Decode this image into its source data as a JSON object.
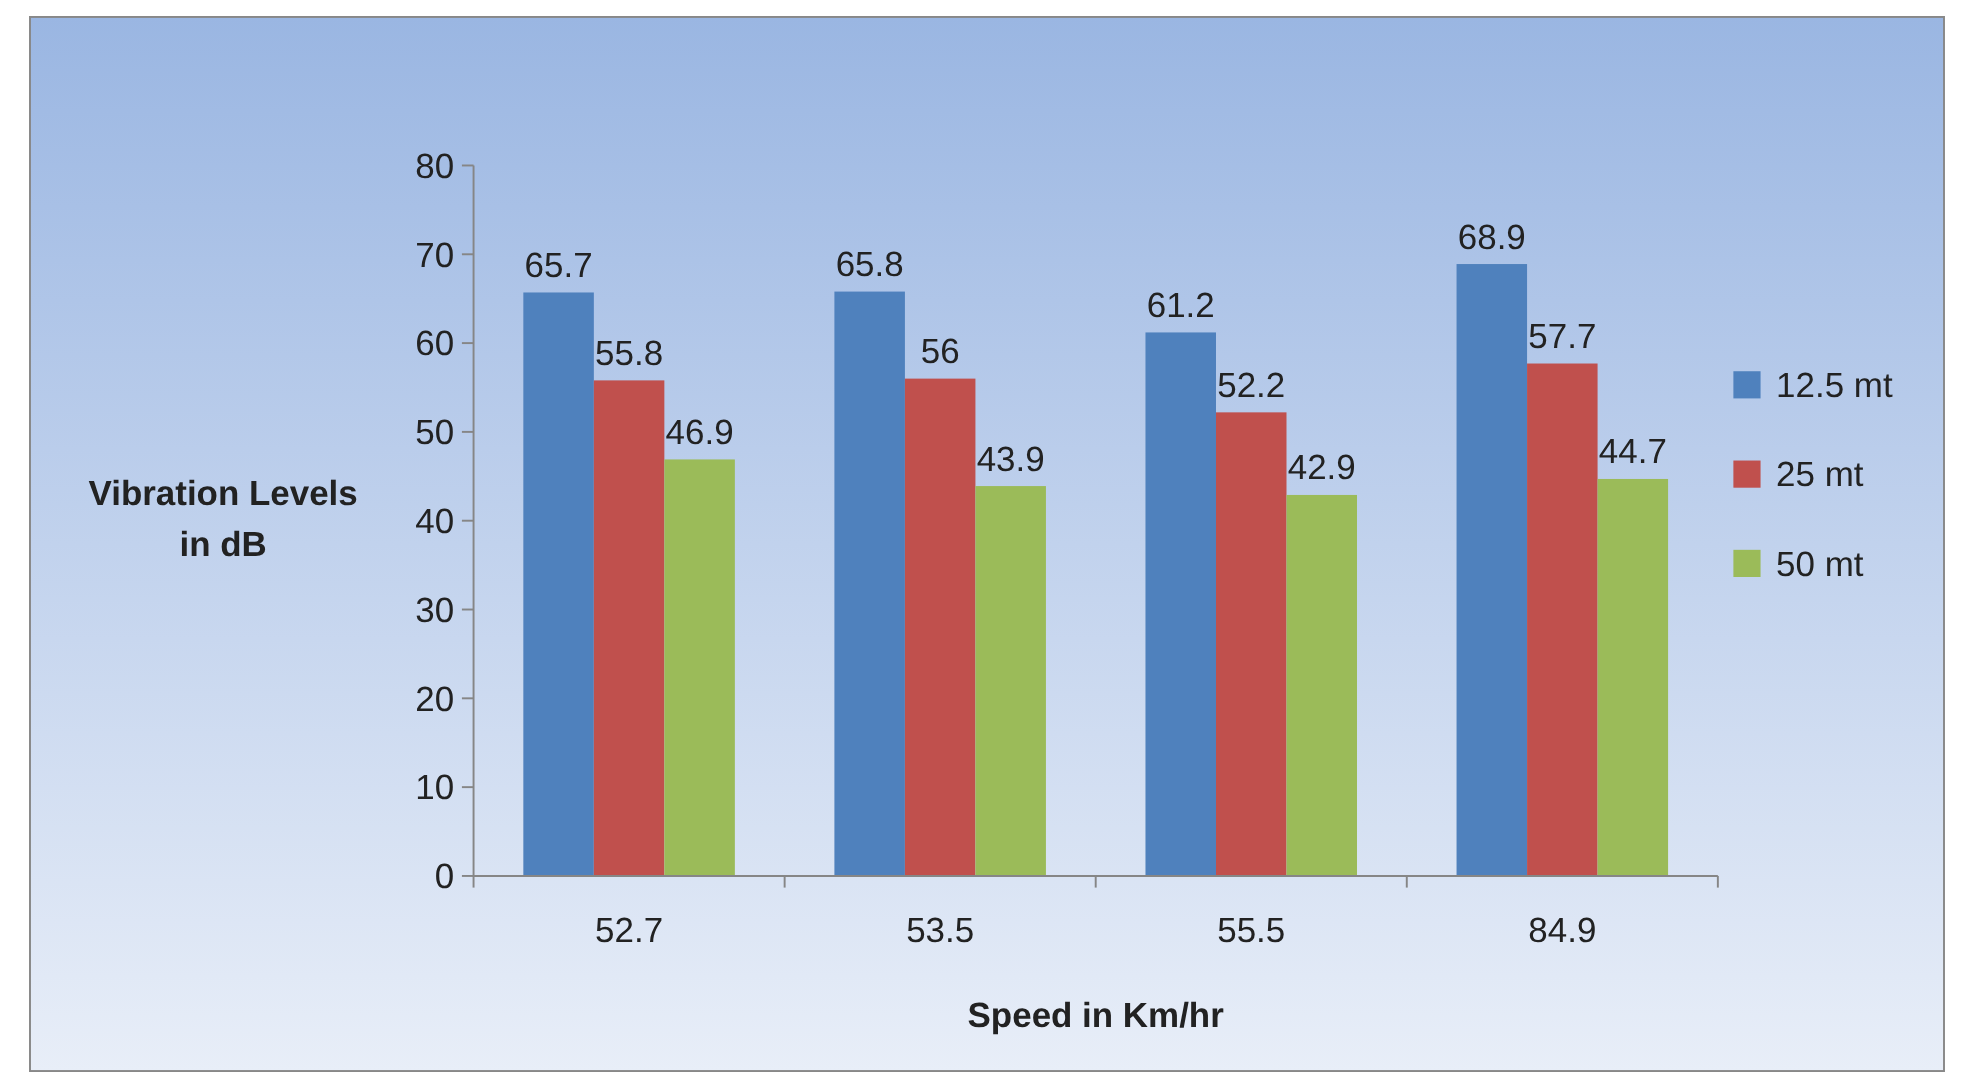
{
  "chart_data": {
    "type": "bar",
    "xlabel": "Speed in Km/hr",
    "ylabel": "Vibration Levels in dB",
    "categories": [
      "52.7",
      "53.5",
      "55.5",
      "84.9"
    ],
    "series": [
      {
        "name": "12.5 mt",
        "color": "#4f81bd",
        "values": [
          65.7,
          65.8,
          61.2,
          68.9
        ]
      },
      {
        "name": "25 mt",
        "color": "#c0504d",
        "values": [
          55.8,
          56,
          52.2,
          57.7
        ]
      },
      {
        "name": "50 mt",
        "color": "#9bbb59",
        "values": [
          46.9,
          43.9,
          42.9,
          44.7
        ]
      }
    ],
    "ylim": [
      0,
      80
    ],
    "yticks": [
      0,
      10,
      20,
      30,
      40,
      50,
      60,
      70,
      80
    ],
    "data_labels": true,
    "legend": "right",
    "grid": false
  }
}
